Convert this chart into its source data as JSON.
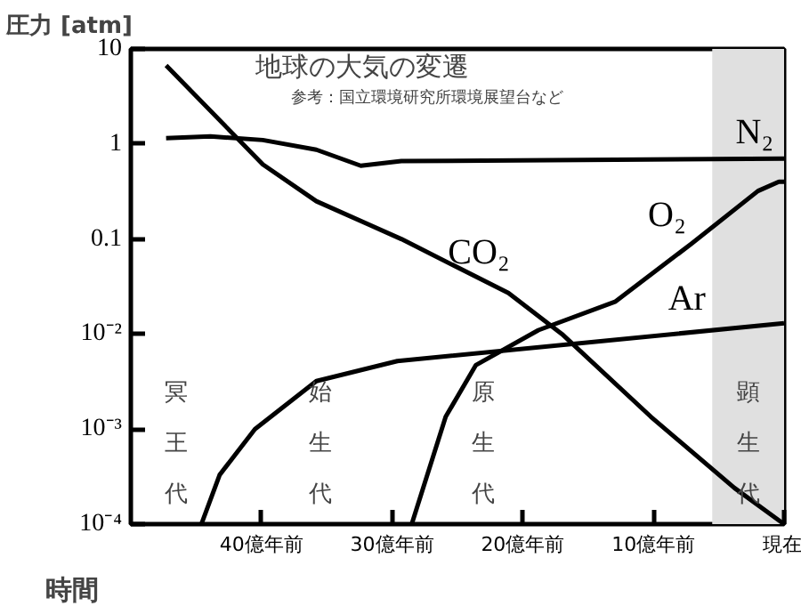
{
  "chart_data": {
    "type": "line",
    "title": "地球の大気の変遷",
    "subtitle": "参考：国立環境研究所環境展望台など",
    "xlabel": "時間",
    "ylabel": "圧力 [atm]",
    "log": "y",
    "xlim": [
      50,
      0
    ],
    "ylim": [
      0.0001,
      10
    ],
    "xticks": [
      {
        "value": 40,
        "label": "40億年前"
      },
      {
        "value": 30,
        "label": "30億年前"
      },
      {
        "value": 20,
        "label": "20億年前"
      },
      {
        "value": 10,
        "label": "10億年前"
      },
      {
        "value": 0,
        "label": "現在"
      }
    ],
    "yticks": [
      {
        "value": 0.0001,
        "label": "10⁻⁴"
      },
      {
        "value": 0.001,
        "label": "10⁻³"
      },
      {
        "value": 0.01,
        "label": "10⁻²"
      },
      0.1,
      1,
      10
    ],
    "line_style": "solid",
    "series": [
      {
        "name": "N₂",
        "color": "#000000",
        "x": [
          47.3,
          43.9,
          39.9,
          35.8,
          32.4,
          29.3,
          0
        ],
        "values": [
          1.15,
          1.2,
          1.1,
          0.87,
          0.59,
          0.66,
          0.7
        ]
      },
      {
        "name": "CO₂",
        "color": "#000000",
        "x": [
          47.3,
          39.9,
          35.8,
          29.3,
          21.1,
          17,
          10.2,
          3.8,
          0
        ],
        "values": [
          6.7,
          0.61,
          0.25,
          0.1,
          0.027,
          0.01,
          0.00135,
          0.00024,
          0.0001
        ]
      },
      {
        "name": "O₂",
        "color": "#000000",
        "x": [
          28.5,
          25.9,
          23.6,
          18.8,
          12.9,
          7.1,
          2,
          0.4,
          0
        ],
        "values": [
          0.0001,
          0.00135,
          0.0047,
          0.011,
          0.022,
          0.089,
          0.32,
          0.4,
          0.4
        ]
      },
      {
        "name": "Ar",
        "color": "#000000",
        "x": [
          44.6,
          43.2,
          40.5,
          35.8,
          29.6,
          0
        ],
        "values": [
          0.0001,
          0.00033,
          0.001,
          0.0032,
          0.0052,
          0.013
        ]
      }
    ],
    "bands": [
      {
        "axis": "x",
        "from": 5.5,
        "to": 0,
        "label": "顕生代",
        "color": "#e0e0e0"
      }
    ],
    "annotations": [
      "冥王代",
      "始生代",
      "原生代"
    ]
  }
}
